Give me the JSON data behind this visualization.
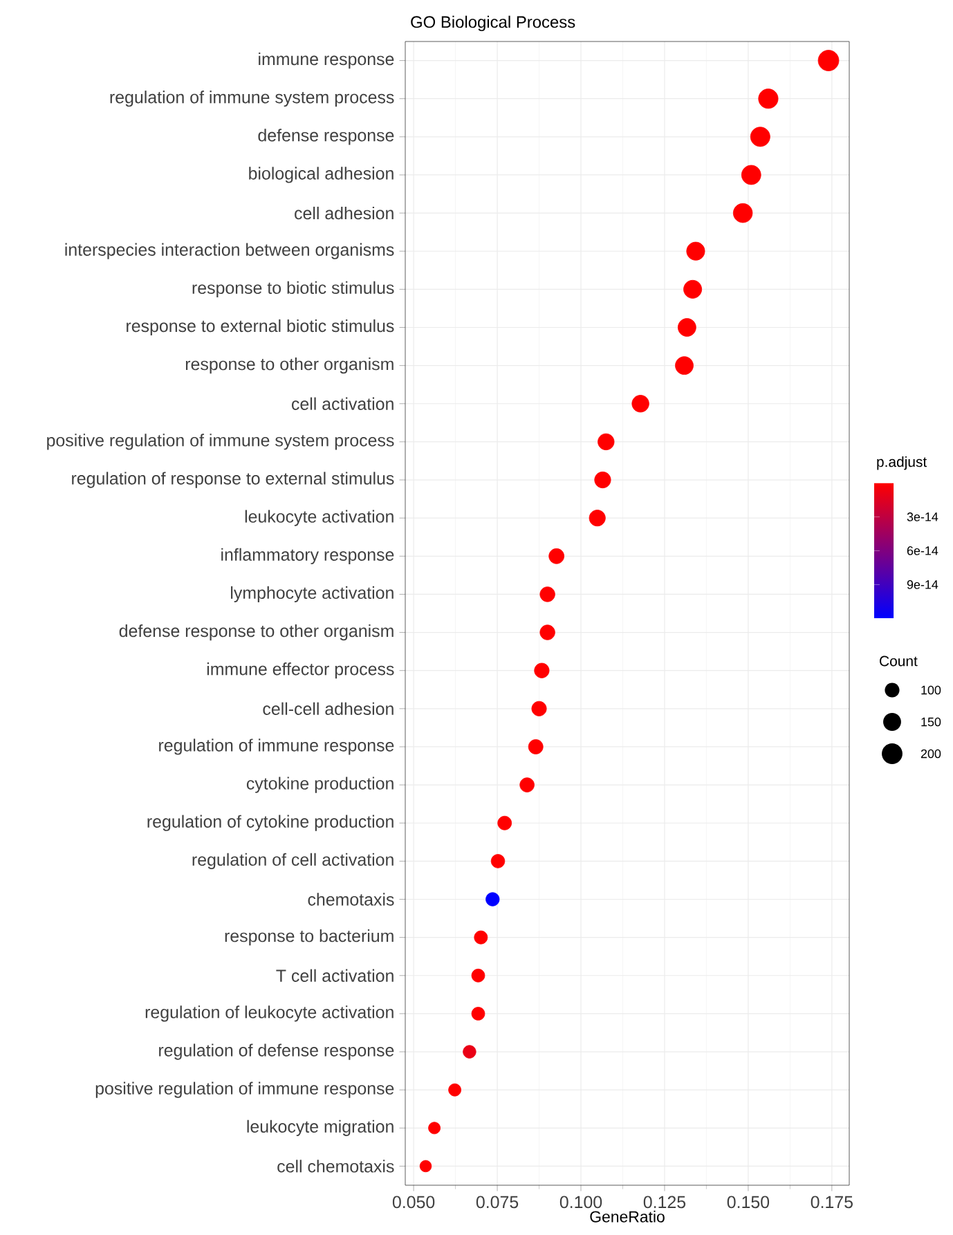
{
  "chart_data": {
    "type": "bubble",
    "orientation": "horizontal",
    "title": "GO Biological Process",
    "xlabel": "GeneRatio",
    "clabel": "p.adjust",
    "legend_title": "Count",
    "categories": [
      "immune response",
      "regulation of immune system process",
      "defense response",
      "biological adhesion",
      "cell adhesion",
      "interspecies interaction between organisms",
      "response to biotic stimulus",
      "response to external biotic stimulus",
      "response to other organism",
      "cell activation",
      "positive regulation of immune system process",
      "regulation of response to external stimulus",
      "leukocyte activation",
      "inflammatory response",
      "lymphocyte activation",
      "defense response to other organism",
      "immune effector process",
      "cell-cell adhesion",
      "regulation of immune response",
      "cytokine production",
      "regulation of cytokine production",
      "regulation of cell activation",
      "chemotaxis",
      "response to bacterium",
      "T cell activation",
      "regulation of leukocyte activation",
      "regulation of defense response",
      "positive regulation of immune response",
      "leukocyte migration",
      "cell chemotaxis"
    ],
    "values": [
      0.174,
      0.156,
      0.1536,
      0.1509,
      0.1484,
      0.1343,
      0.1334,
      0.1317,
      0.1309,
      0.1178,
      0.1075,
      0.1065,
      0.1049,
      0.0927,
      0.09,
      0.09,
      0.0883,
      0.0875,
      0.0865,
      0.0839,
      0.0772,
      0.0752,
      0.0736,
      0.0701,
      0.0693,
      0.0693,
      0.0667,
      0.0623,
      0.0562,
      0.0536
    ],
    "sizes": [
      200,
      179,
      177,
      174,
      171,
      154,
      153,
      151,
      151,
      135,
      124,
      122,
      121,
      107,
      104,
      104,
      102,
      101,
      99,
      96,
      89,
      86,
      85,
      81,
      80,
      80,
      77,
      72,
      65,
      62
    ],
    "size_legend": [
      100,
      150,
      200
    ],
    "cvalues": [
      0,
      0,
      0,
      0,
      0,
      0,
      0,
      0,
      0,
      0,
      0,
      0,
      0,
      0,
      0,
      0,
      0,
      0,
      0,
      0,
      0,
      0,
      1.2e-13,
      0,
      0,
      0,
      1e-14,
      0,
      0,
      0
    ],
    "clim": [
      0,
      1.2e-13
    ],
    "cticks": [
      {
        "value": 3e-14,
        "label": "3e-14"
      },
      {
        "value": 6e-14,
        "label": "6e-14"
      },
      {
        "value": 9e-14,
        "label": "9e-14"
      }
    ],
    "xlim": [
      0.0475,
      0.1802
    ],
    "xticks": [
      {
        "value": 0.05,
        "label": "0.050"
      },
      {
        "value": 0.075,
        "label": "0.075"
      },
      {
        "value": 0.1,
        "label": "0.100"
      },
      {
        "value": 0.125,
        "label": "0.125"
      },
      {
        "value": 0.15,
        "label": "0.150"
      },
      {
        "value": 0.175,
        "label": "0.175"
      }
    ],
    "grid": true
  }
}
